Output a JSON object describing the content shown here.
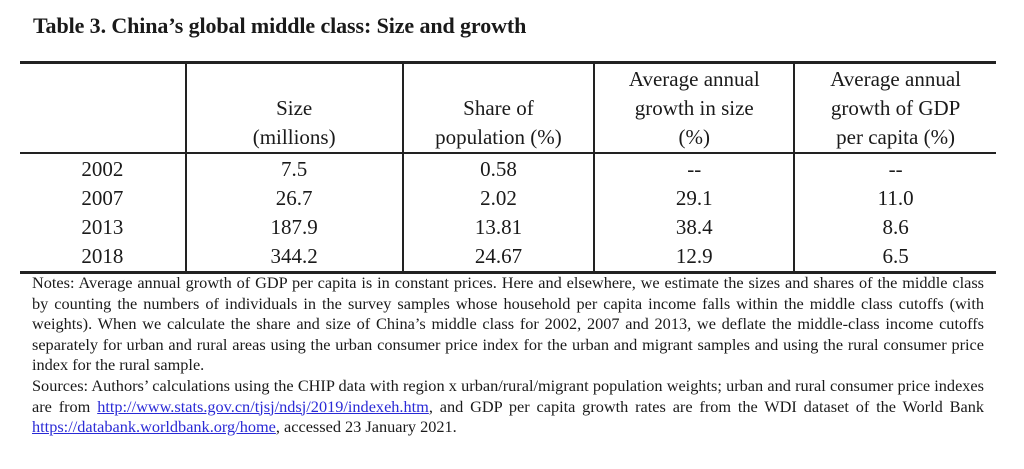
{
  "title": "Table 3. China’s global middle class: Size and growth",
  "table": {
    "headers": [
      {
        "lines": [
          ""
        ]
      },
      {
        "lines": [
          "Size",
          "(millions)"
        ]
      },
      {
        "lines": [
          "Share of",
          "population (%)"
        ]
      },
      {
        "lines": [
          "Average annual",
          "growth in size",
          "(%)"
        ]
      },
      {
        "lines": [
          "Average annual",
          "growth of GDP",
          "per capita (%)"
        ]
      }
    ],
    "rows": [
      {
        "year": "2002",
        "size": "7.5",
        "share": "0.58",
        "growth_size": "--",
        "growth_gdp": "--"
      },
      {
        "year": "2007",
        "size": "26.7",
        "share": "2.02",
        "growth_size": "29.1",
        "growth_gdp": "11.0"
      },
      {
        "year": "2013",
        "size": "187.9",
        "share": "13.81",
        "growth_size": "38.4",
        "growth_gdp": "8.6"
      },
      {
        "year": "2018",
        "size": "344.2",
        "share": "24.67",
        "growth_size": "12.9",
        "growth_gdp": "6.5"
      }
    ]
  },
  "notes": {
    "text": "Notes: Average annual growth of GDP per capita is in constant prices. Here and elsewhere, we estimate the sizes and shares of the middle class by counting the numbers of individuals in the survey samples whose household per capita income falls within the middle class cutoffs (with weights). When we calculate the share and size of China’s middle class for 2002, 2007 and 2013, we deflate the middle-class income cutoffs separately for urban and rural areas using the urban consumer price index for the urban and migrant samples and using the rural consumer price index for the rural sample."
  },
  "sources": {
    "text_1": "Sources: Authors’ calculations using the CHIP data with region x urban/rural/migrant population weights; urban and rural consumer price indexes are from ",
    "link_1": "http://www.stats.gov.cn/tjsj/ndsj/2019/indexeh.htm",
    "text_2": ", and GDP per capita growth rates are from the WDI dataset of the World Bank ",
    "link_2": "https://databank.worldbank.org/home",
    "text_3": ", accessed 23 January 2021."
  },
  "colors": {
    "link": "#2a2ad6",
    "text": "#1a1a1a",
    "rule": "#222222"
  }
}
